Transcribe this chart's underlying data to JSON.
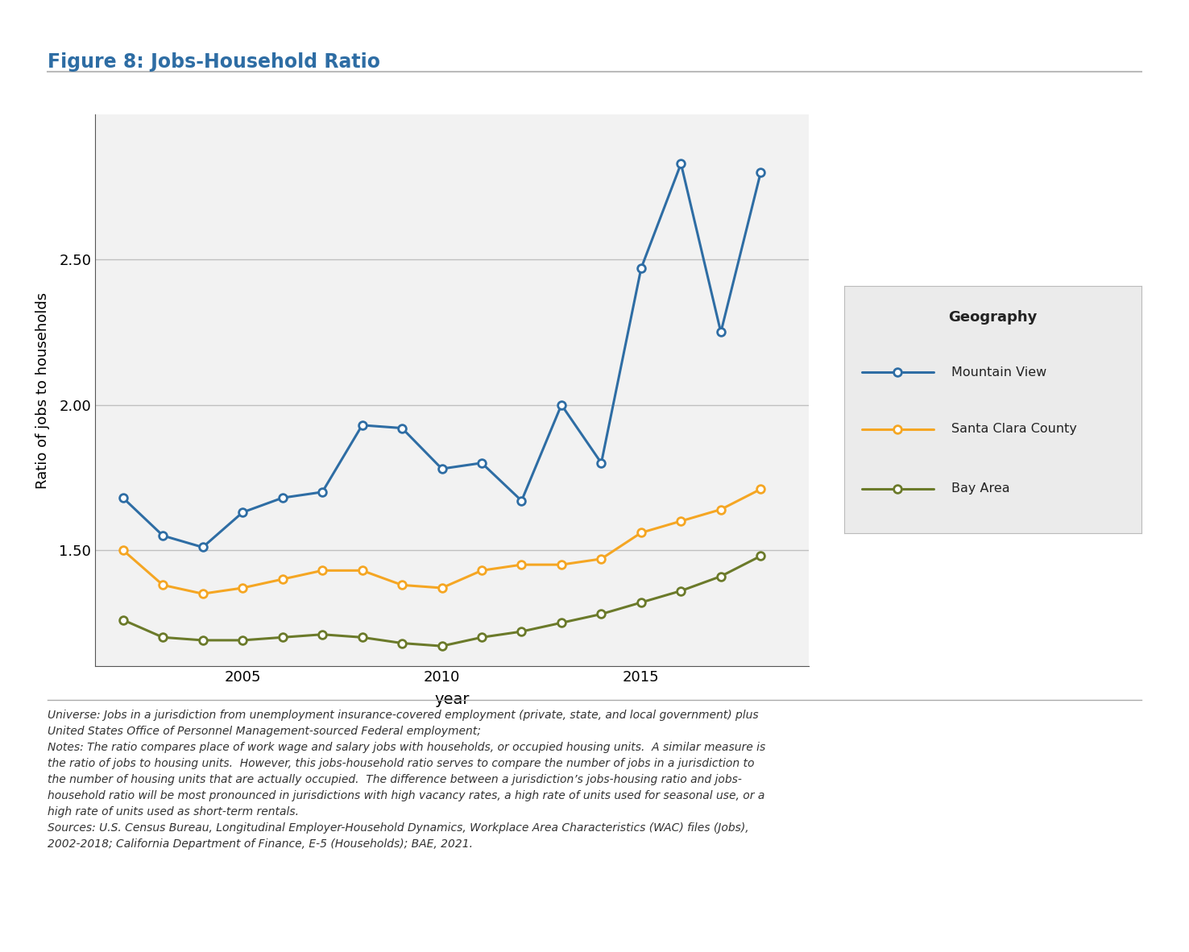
{
  "title": "Figure 8: Jobs-Household Ratio",
  "title_color": "#2E6DA4",
  "xlabel": "year",
  "ylabel": "Ratio of jobs to households",
  "background_color": "#FFFFFF",
  "plot_bg_color": "#F2F2F2",
  "years": [
    2002,
    2003,
    2004,
    2005,
    2006,
    2007,
    2008,
    2009,
    2010,
    2011,
    2012,
    2013,
    2014,
    2015,
    2016,
    2017,
    2018
  ],
  "mountain_view": [
    1.68,
    1.55,
    1.51,
    1.63,
    1.68,
    1.7,
    1.93,
    1.92,
    1.78,
    1.8,
    1.67,
    2.0,
    1.8,
    2.47,
    2.83,
    2.25,
    2.8
  ],
  "santa_clara": [
    1.5,
    1.38,
    1.35,
    1.37,
    1.4,
    1.43,
    1.43,
    1.38,
    1.37,
    1.43,
    1.45,
    1.45,
    1.47,
    1.56,
    1.6,
    1.64,
    1.71
  ],
  "bay_area": [
    1.26,
    1.2,
    1.19,
    1.19,
    1.2,
    1.21,
    1.2,
    1.18,
    1.17,
    1.2,
    1.22,
    1.25,
    1.28,
    1.32,
    1.36,
    1.41,
    1.48
  ],
  "mv_color": "#2E6DA4",
  "sc_color": "#F5A623",
  "ba_color": "#6B7A2A",
  "legend_title": "Geography",
  "legend_items": [
    "Mountain View",
    "Santa Clara County",
    "Bay Area"
  ],
  "ylim": [
    1.1,
    3.0
  ],
  "yticks": [
    1.5,
    2.0,
    2.5
  ],
  "xticks": [
    2005,
    2010,
    2015
  ],
  "xlim": [
    2001.3,
    2019.2
  ],
  "notes_line1": "Universe: Jobs in a jurisdiction from unemployment insurance-covered employment (private, state, and local government) plus",
  "notes_line2": "United States Office of Personnel Management-sourced Federal employment;",
  "notes_line3": "Notes: The ratio compares place of work wage and salary jobs with households, or occupied housing units.  A similar measure is",
  "notes_line4": "the ratio of jobs to housing units.  However, this jobs-household ratio serves to compare the number of jobs in a jurisdiction to",
  "notes_line5": "the number of housing units that are actually occupied.  The difference between a jurisdiction’s jobs-housing ratio and jobs-",
  "notes_line6": "household ratio will be most pronounced in jurisdictions with high vacancy rates, a high rate of units used for seasonal use, or a",
  "notes_line7": "high rate of units used as short-term rentals.",
  "notes_line8": "Sources: U.S. Census Bureau, Longitudinal Employer-Household Dynamics, Workplace Area Characteristics (WAC) files (Jobs),",
  "notes_line9": "2002-2018; California Department of Finance, E-5 (Households); BAE, 2021."
}
